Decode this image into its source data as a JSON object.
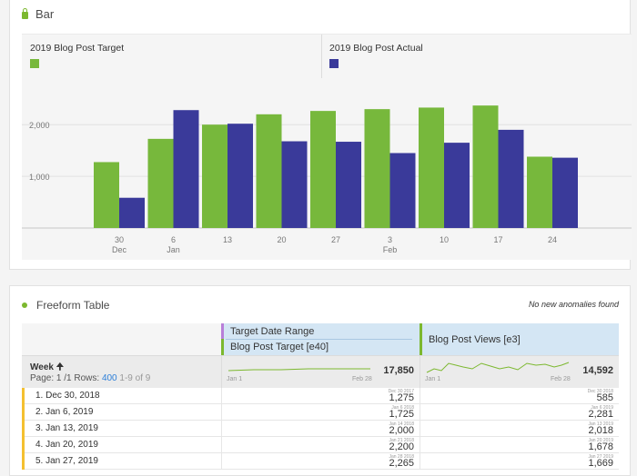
{
  "bar_panel": {
    "title": "Bar",
    "legend": [
      {
        "label": "2019 Blog Post Target",
        "color": "#77b83c"
      },
      {
        "label": "2019 Blog Post Actual",
        "color": "#3a3a9a"
      }
    ]
  },
  "chart_data": {
    "type": "bar",
    "categories": [
      "30 Dec",
      "6 Jan",
      "13",
      "20",
      "27",
      "3 Feb",
      "10",
      "17",
      "24"
    ],
    "tick_labels": [
      {
        "top": "30",
        "bottom": "Dec"
      },
      {
        "top": "6",
        "bottom": "Jan"
      },
      {
        "top": "13",
        "bottom": ""
      },
      {
        "top": "20",
        "bottom": ""
      },
      {
        "top": "27",
        "bottom": ""
      },
      {
        "top": "3",
        "bottom": "Feb"
      },
      {
        "top": "10",
        "bottom": ""
      },
      {
        "top": "17",
        "bottom": ""
      },
      {
        "top": "24",
        "bottom": ""
      }
    ],
    "series": [
      {
        "name": "2019 Blog Post Target",
        "color": "#77b83c",
        "values": [
          1275,
          1725,
          2000,
          2200,
          2265,
          2300,
          2330,
          2370,
          1380
        ]
      },
      {
        "name": "2019 Blog Post Actual",
        "color": "#3a3a9a",
        "values": [
          585,
          2281,
          2018,
          1678,
          1669,
          1450,
          1650,
          1900,
          1360
        ]
      }
    ],
    "yticks": [
      {
        "value": 1000,
        "label": "1,000"
      },
      {
        "value": 2000,
        "label": "2,000"
      }
    ],
    "ylim": [
      0,
      2900
    ],
    "grid": true,
    "legend_position": "top"
  },
  "table_panel": {
    "title": "Freeform Table",
    "note": "No new anomalies found",
    "dim_header": "Week",
    "sort_icon": "up-arrow-icon",
    "page_label": "Page: 1 /1 Rows:",
    "rows_count": "400",
    "range_label": "1-9 of 9",
    "segment_1": "Target Date Range",
    "segment_2": "Blog Post Target [e40]",
    "segment_3": "Blog Post Views [e3]",
    "col1_start": "Jan 1",
    "col1_end": "Feb 28",
    "col1_total": "17,850",
    "col2_start": "Jan 1",
    "col2_end": "Feb 28",
    "col2_total": "14,592",
    "rows": [
      {
        "label": "1. Dec 30, 2018",
        "d1": "Dec 30 2017",
        "v1": "1,275",
        "d2": "Dec 30 2018",
        "v2": "585"
      },
      {
        "label": "2. Jan 6, 2019",
        "d1": "Jan 6 2018",
        "v1": "1,725",
        "d2": "Jan 6 2019",
        "v2": "2,281"
      },
      {
        "label": "3. Jan 13, 2019",
        "d1": "Jan 14 2018",
        "v1": "2,000",
        "d2": "Jan 13 2019",
        "v2": "2,018"
      },
      {
        "label": "4. Jan 20, 2019",
        "d1": "Jan 21 2018",
        "v1": "2,200",
        "d2": "Jan 20 2019",
        "v2": "1,678"
      },
      {
        "label": "5. Jan 27, 2019",
        "d1": "Jan 28 2018",
        "v1": "2,265",
        "d2": "Jan 27 2019",
        "v2": "1,669"
      }
    ]
  }
}
